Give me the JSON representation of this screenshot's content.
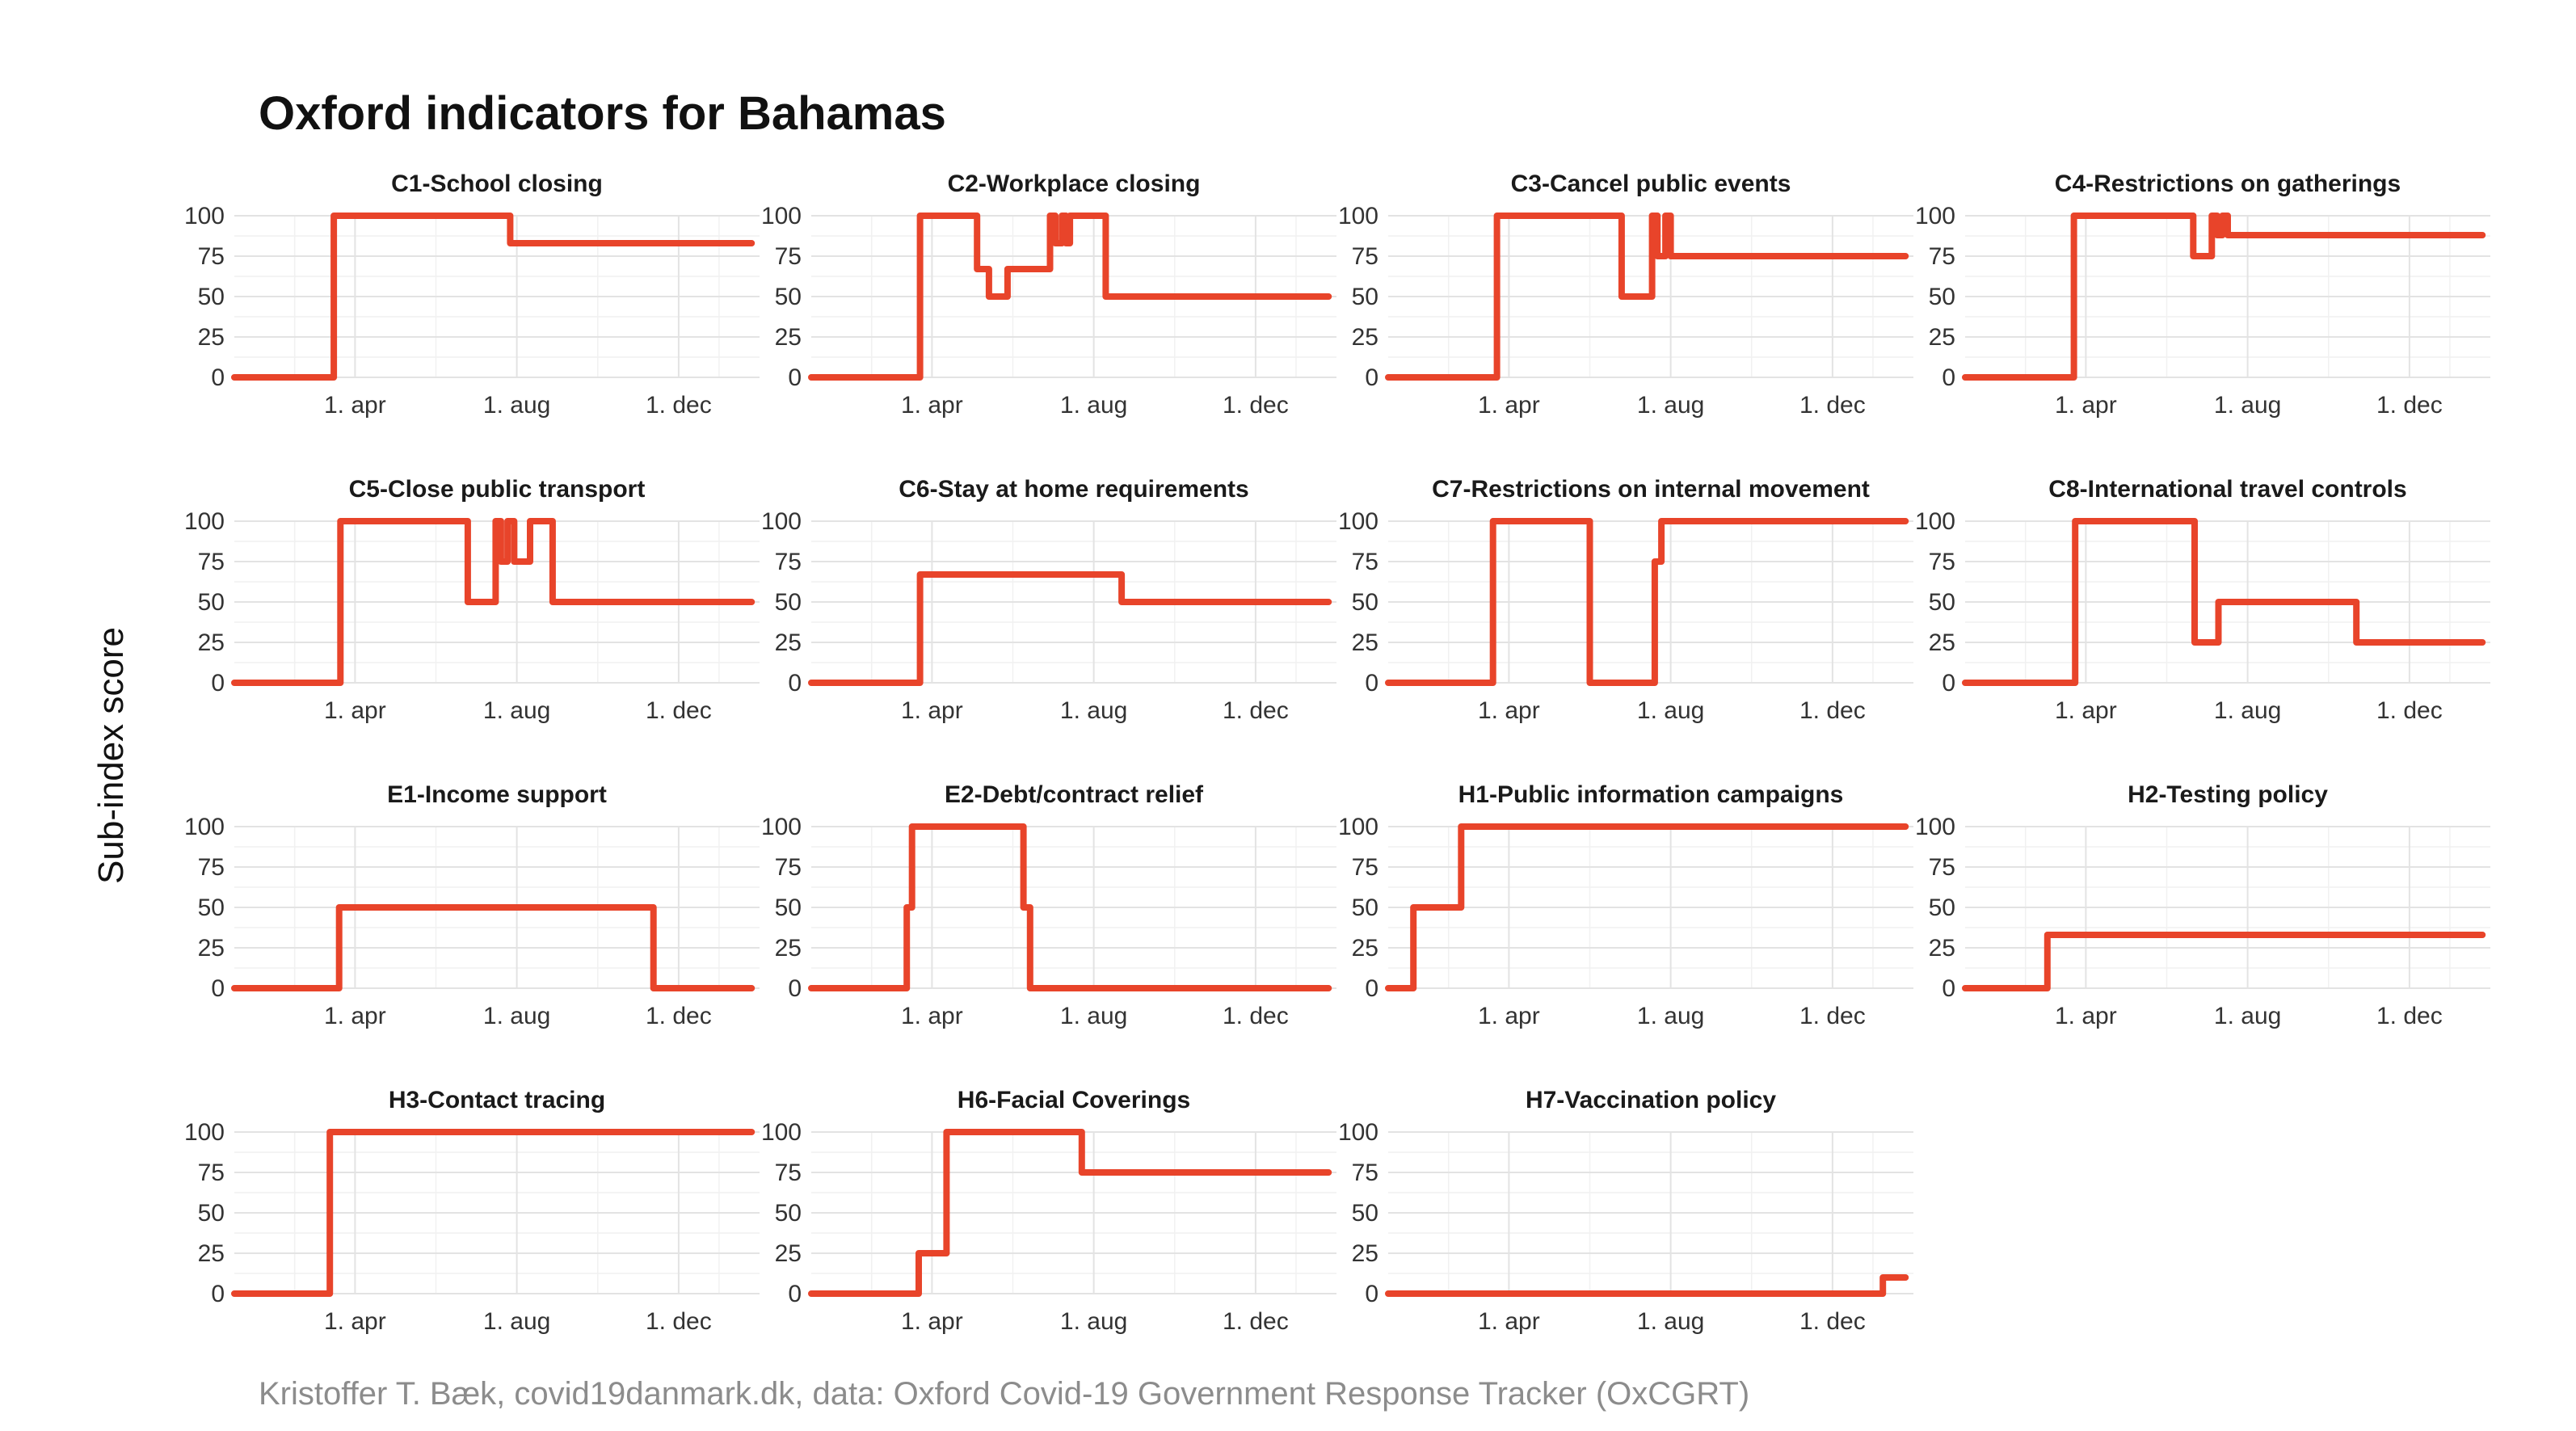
{
  "title": "Oxford indicators for Bahamas",
  "caption": "Kristoffer T. Bæk, covid19danmark.dk, data: Oxford Covid-19 Government Response Tracker (OxCGRT)",
  "colors": {
    "line": "#e8442a"
  },
  "chart_data": {
    "type": "line",
    "xlabel": "",
    "ylabel": "Sub-index score",
    "x_unit": "date (2020-2021)",
    "xlim": [
      "2020-01-01",
      "2021-01-31"
    ],
    "ylim": [
      0,
      100
    ],
    "yticks": [
      0,
      25,
      50,
      75,
      100
    ],
    "yticklabels": [
      "0",
      "25",
      "50",
      "75",
      "100"
    ],
    "xticks": [
      "2020-04-01",
      "2020-08-01",
      "2020-12-01"
    ],
    "xticklabels": [
      "1. apr",
      "1. aug",
      "1. dec"
    ],
    "grid": true,
    "legend": "none",
    "panels": [
      {
        "title": "C1-School closing",
        "x": [
          "2020-01-01",
          "2020-03-16",
          "2020-03-16",
          "2020-07-27",
          "2020-07-27",
          "2021-01-25"
        ],
        "y": [
          0,
          0,
          100,
          100,
          83,
          83
        ]
      },
      {
        "title": "C2-Workplace closing",
        "x": [
          "2020-01-01",
          "2020-03-23",
          "2020-03-23",
          "2020-05-05",
          "2020-05-05",
          "2020-05-14",
          "2020-05-14",
          "2020-05-28",
          "2020-05-28",
          "2020-06-29",
          "2020-06-29",
          "2020-07-03",
          "2020-07-03",
          "2020-07-08",
          "2020-07-08",
          "2020-07-11",
          "2020-07-11",
          "2020-07-14",
          "2020-07-14",
          "2020-08-10",
          "2020-08-10",
          "2021-01-25"
        ],
        "y": [
          0,
          0,
          100,
          100,
          67,
          67,
          50,
          50,
          67,
          67,
          100,
          100,
          83,
          83,
          100,
          100,
          83,
          83,
          100,
          100,
          50,
          50
        ]
      },
      {
        "title": "C3-Cancel public events",
        "x": [
          "2020-01-01",
          "2020-03-23",
          "2020-03-23",
          "2020-06-25",
          "2020-06-25",
          "2020-07-18",
          "2020-07-18",
          "2020-07-22",
          "2020-07-22",
          "2020-07-28",
          "2020-07-28",
          "2020-08-01",
          "2020-08-01",
          "2021-01-25"
        ],
        "y": [
          0,
          0,
          100,
          100,
          50,
          50,
          100,
          100,
          75,
          75,
          100,
          100,
          75,
          75
        ]
      },
      {
        "title": "C4-Restrictions on gatherings",
        "x": [
          "2020-01-01",
          "2020-03-23",
          "2020-03-23",
          "2020-06-21",
          "2020-06-21",
          "2020-07-05",
          "2020-07-05",
          "2020-07-09",
          "2020-07-09",
          "2020-07-13",
          "2020-07-13",
          "2020-07-17",
          "2020-07-17",
          "2020-07-21",
          "2020-07-21",
          "2021-01-25"
        ],
        "y": [
          0,
          0,
          100,
          100,
          75,
          75,
          100,
          100,
          88,
          88,
          100,
          100,
          88,
          88,
          88,
          88
        ]
      },
      {
        "title": "C5-Close public transport",
        "x": [
          "2020-01-01",
          "2020-03-21",
          "2020-03-21",
          "2020-06-25",
          "2020-06-25",
          "2020-07-16",
          "2020-07-16",
          "2020-07-20",
          "2020-07-20",
          "2020-07-25",
          "2020-07-25",
          "2020-07-30",
          "2020-07-30",
          "2020-08-11",
          "2020-08-11",
          "2020-08-28",
          "2020-08-28",
          "2021-01-25"
        ],
        "y": [
          0,
          0,
          100,
          100,
          50,
          50,
          100,
          100,
          75,
          75,
          100,
          100,
          75,
          75,
          100,
          100,
          50,
          50
        ]
      },
      {
        "title": "C6-Stay at home requirements",
        "x": [
          "2020-01-01",
          "2020-03-23",
          "2020-03-23",
          "2020-08-22",
          "2020-08-22",
          "2021-01-25"
        ],
        "y": [
          0,
          0,
          67,
          67,
          50,
          50
        ]
      },
      {
        "title": "C7-Restrictions on internal movement",
        "x": [
          "2020-01-01",
          "2020-03-20",
          "2020-03-20",
          "2020-06-01",
          "2020-06-01",
          "2020-07-20",
          "2020-07-20",
          "2020-07-25",
          "2020-07-25",
          "2021-01-25"
        ],
        "y": [
          0,
          0,
          100,
          100,
          0,
          0,
          75,
          75,
          100,
          100
        ]
      },
      {
        "title": "C8-International travel controls",
        "x": [
          "2020-01-01",
          "2020-03-24",
          "2020-03-24",
          "2020-06-22",
          "2020-06-22",
          "2020-07-10",
          "2020-07-10",
          "2020-10-22",
          "2020-10-22",
          "2021-01-25"
        ],
        "y": [
          0,
          0,
          100,
          100,
          25,
          25,
          50,
          50,
          25,
          25
        ]
      },
      {
        "title": "E1-Income support",
        "x": [
          "2020-01-01",
          "2020-03-20",
          "2020-03-20",
          "2020-11-12",
          "2020-11-12",
          "2021-01-25"
        ],
        "y": [
          0,
          0,
          50,
          50,
          0,
          0
        ]
      },
      {
        "title": "E2-Debt/contract relief",
        "x": [
          "2020-01-01",
          "2020-03-13",
          "2020-03-13",
          "2020-03-17",
          "2020-03-17",
          "2020-06-09",
          "2020-06-09",
          "2020-06-14",
          "2020-06-14",
          "2021-01-25"
        ],
        "y": [
          0,
          0,
          50,
          50,
          100,
          100,
          50,
          50,
          0,
          0
        ]
      },
      {
        "title": "H1-Public information campaigns",
        "x": [
          "2020-01-01",
          "2020-01-20",
          "2020-01-20",
          "2020-02-25",
          "2020-02-25",
          "2021-01-25"
        ],
        "y": [
          0,
          0,
          50,
          50,
          100,
          100
        ]
      },
      {
        "title": "H2-Testing policy",
        "x": [
          "2020-01-01",
          "2020-03-03",
          "2020-03-03",
          "2021-01-25"
        ],
        "y": [
          0,
          0,
          33,
          33
        ]
      },
      {
        "title": "H3-Contact tracing",
        "x": [
          "2020-01-01",
          "2020-03-13",
          "2020-03-13",
          "2021-01-25"
        ],
        "y": [
          0,
          0,
          100,
          100
        ]
      },
      {
        "title": "H6-Facial Coverings",
        "x": [
          "2020-01-01",
          "2020-03-22",
          "2020-03-22",
          "2020-04-12",
          "2020-04-12",
          "2020-07-23",
          "2020-07-23",
          "2021-01-25"
        ],
        "y": [
          0,
          0,
          25,
          25,
          100,
          100,
          75,
          75
        ]
      },
      {
        "title": "H7-Vaccination policy",
        "x": [
          "2020-01-01",
          "2021-01-08",
          "2021-01-08",
          "2021-01-25"
        ],
        "y": [
          0,
          0,
          10,
          10
        ]
      }
    ]
  }
}
